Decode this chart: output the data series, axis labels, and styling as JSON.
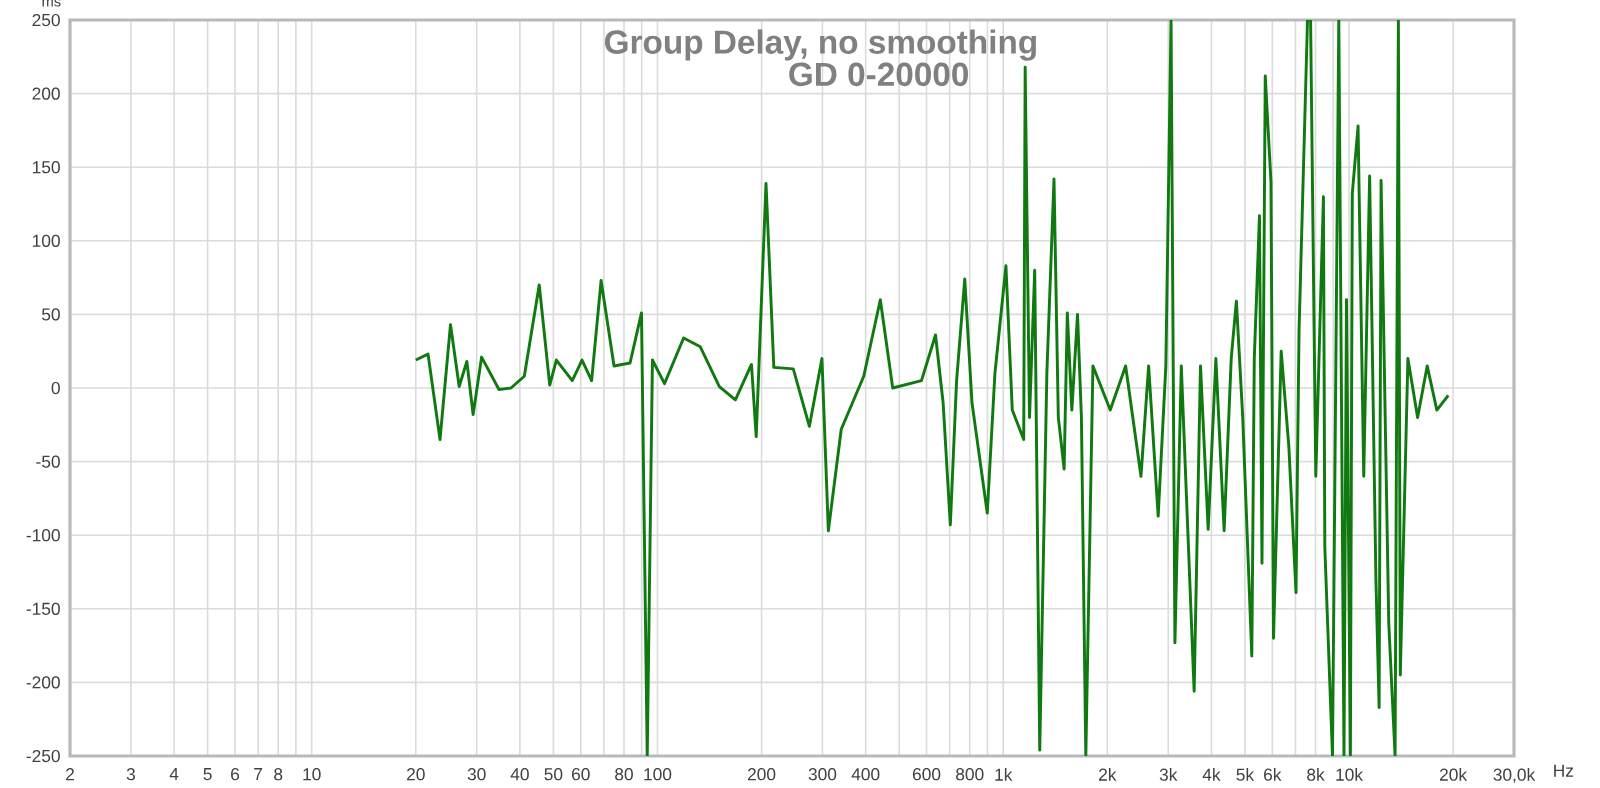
{
  "chart_data": {
    "type": "line",
    "title": "Group Delay, no smoothing",
    "subtitle": "GD 0-20000",
    "xlabel": "Hz",
    "ylabel": "ms",
    "log": "x",
    "grid": true,
    "line_style": "solid",
    "xlim": [
      2,
      30000
    ],
    "ylim": [
      -250,
      250
    ],
    "xticks": [
      2,
      3,
      4,
      5,
      6,
      7,
      8,
      {
        "value": 9,
        "label": null
      },
      10,
      20,
      30,
      40,
      50,
      60,
      {
        "value": 70,
        "label": null
      },
      80,
      {
        "value": 90,
        "label": null
      },
      100,
      200,
      300,
      400,
      {
        "value": 500,
        "label": null
      },
      600,
      {
        "value": 700,
        "label": null
      },
      800,
      {
        "value": 900,
        "label": null
      },
      {
        "value": 1000,
        "label": "1k"
      },
      {
        "value": 2000,
        "label": "2k"
      },
      {
        "value": 3000,
        "label": "3k"
      },
      {
        "value": 4000,
        "label": "4k"
      },
      {
        "value": 5000,
        "label": "5k"
      },
      {
        "value": 6000,
        "label": "6k"
      },
      {
        "value": 7000,
        "label": null
      },
      {
        "value": 8000,
        "label": "8k"
      },
      {
        "value": 9000,
        "label": null
      },
      {
        "value": 10000,
        "label": "10k"
      },
      {
        "value": 20000,
        "label": "20k"
      },
      {
        "value": 30000,
        "label": "30,0k"
      }
    ],
    "yticks": [
      -250,
      -200,
      -150,
      -100,
      -50,
      0,
      50,
      100,
      150,
      200,
      250
    ],
    "x": [
      20.0,
      21.7,
      23.5,
      25.2,
      26.7,
      28.1,
      29.3,
      31,
      34.8,
      37.7,
      41.2,
      45.5,
      48.8,
      51,
      56.7,
      60.5,
      64.5,
      68.7,
      74.9,
      83.3,
      89.9,
      93.4,
      96.7,
      104.8,
      119,
      133,
      151,
      168,
      187,
      193,
      206,
      217,
      247,
      275,
      299,
      312,
      340,
      395,
      441,
      479,
      580,
      637,
      670,
      703,
      733,
      774,
      812,
      899,
      946,
      1018,
      1062,
      1146,
      1157,
      1191,
      1233,
      1275,
      1337,
      1402,
      1443,
      1500,
      1532,
      1579,
      1640,
      1683,
      1733,
      1817,
      2039,
      2259,
      2502,
      2633,
      2806,
      2953,
      3057,
      3137,
      3273,
      3565,
      3719,
      3915,
      4120,
      4353,
      4563,
      4723,
      4927,
      5234,
      5321,
      5508,
      5601,
      5724,
      5947,
      6048,
      6365,
      6699,
      7025,
      7169,
      7585,
      7742,
      8014,
      8433,
      8511,
      8957,
      9342,
      9670,
      9833,
      10090,
      10220,
      10620,
      11030,
      11470,
      11960,
      12220,
      12380,
      13030,
      13590,
      13890,
      14070,
      14800,
      15790,
      16830,
      17950,
      19370
    ],
    "series": [
      {
        "color": "#107a10",
        "values": [
          19,
          23,
          -35,
          43,
          1,
          18,
          -18,
          21,
          -1,
          0,
          8,
          70,
          2,
          19,
          5,
          19,
          5,
          73,
          15,
          17,
          51,
          -250,
          19,
          3,
          34,
          28,
          1,
          -8,
          16,
          -33,
          139,
          14,
          13,
          -26,
          20,
          -97,
          -28,
          8,
          60,
          0,
          5,
          36,
          -10,
          -93,
          5,
          74,
          -10,
          -85,
          10,
          83,
          -15,
          -35,
          218,
          -20,
          80,
          -246,
          10,
          142,
          -20,
          -55,
          51,
          -15,
          50,
          -20,
          -250,
          15,
          -15,
          15,
          -60,
          15,
          -87,
          15,
          250,
          -173,
          15,
          -206,
          15,
          -96,
          20,
          -97,
          20,
          59,
          -20,
          -182,
          20,
          117,
          -119,
          212,
          140,
          -170,
          25,
          -40,
          -139,
          39,
          250,
          250,
          -60,
          130,
          -108,
          -250,
          250,
          -250,
          60,
          -250,
          132,
          178,
          -60,
          144,
          -130,
          -217,
          141,
          -160,
          -250,
          250,
          -195,
          20,
          -20,
          15,
          -15,
          -5
        ]
      }
    ]
  }
}
